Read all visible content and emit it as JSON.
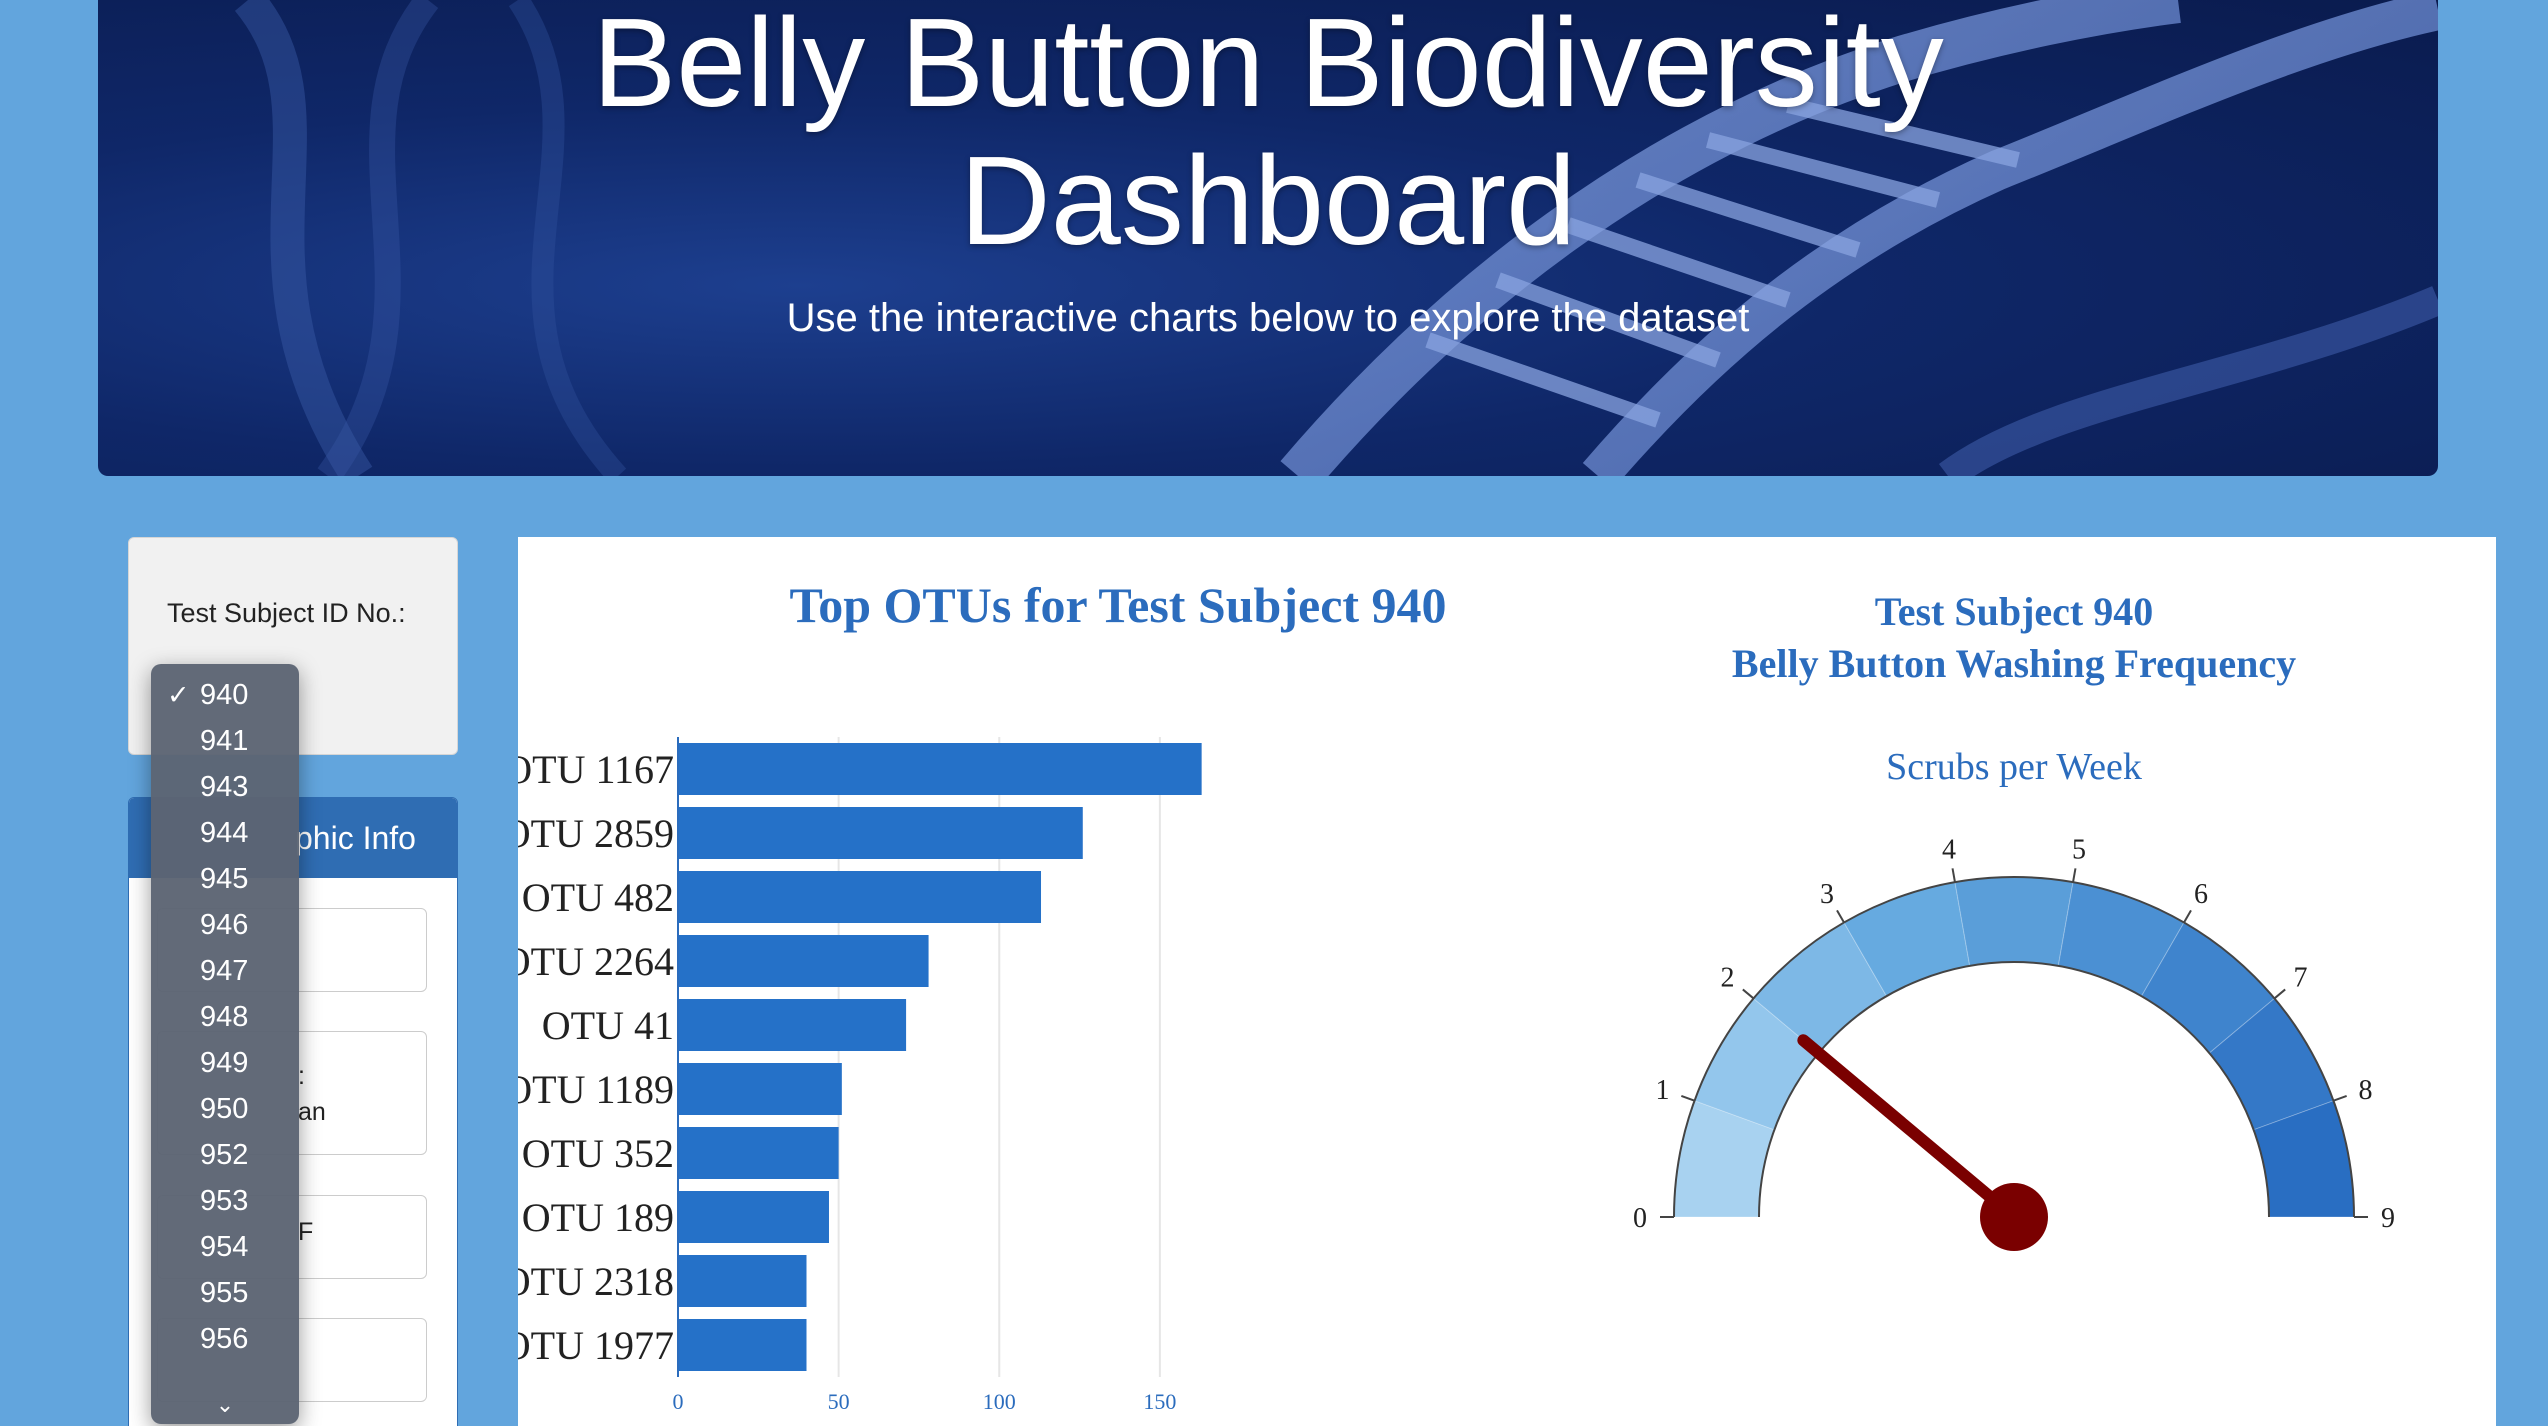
{
  "hero": {
    "title_line1": "Belly Button Biodiversity",
    "title_line2": "Dashboard",
    "subtitle": "Use the interactive charts below to explore the dataset"
  },
  "selector": {
    "label": "Test Subject ID No.:",
    "options": [
      "940",
      "941",
      "943",
      "944",
      "945",
      "946",
      "947",
      "948",
      "949",
      "950",
      "952",
      "953",
      "954",
      "955",
      "956"
    ],
    "selected": "940",
    "check": "✓",
    "more_indicator": "⌄"
  },
  "demographics": {
    "header_partial": "phic Info",
    "box2_partial_a": ":",
    "box2_partial_b": "an",
    "box3_partial": "F"
  },
  "colors": {
    "bar": "#2571c8",
    "title": "#2b6cbd",
    "gauge_needle": "#7a0000",
    "gauge_steps": [
      "#a8d2f0",
      "#93c6ec",
      "#7db8e6",
      "#66aae0",
      "#5a9ed9",
      "#4b90d3",
      "#3f84cd",
      "#3478c7",
      "#296ec2"
    ]
  },
  "chart_data": [
    {
      "type": "bar",
      "orientation": "horizontal",
      "title": "Top OTUs for Test Subject 940",
      "categories": [
        "OTU 1167",
        "OTU 2859",
        "OTU 482",
        "OTU 2264",
        "OTU 41",
        "OTU 1189",
        "OTU 352",
        "OTU 189",
        "OTU 2318",
        "OTU 1977"
      ],
      "values": [
        163,
        126,
        113,
        78,
        71,
        51,
        50,
        47,
        40,
        40
      ],
      "xlim": [
        0,
        160
      ],
      "xticks": [
        0,
        50,
        100,
        150
      ]
    },
    {
      "type": "gauge",
      "title_line1": "Test Subject 940",
      "title_line2": "Belly Button Washing Frequency",
      "subtitle": "Scrubs per Week",
      "range": [
        0,
        9
      ],
      "ticks": [
        0,
        1,
        2,
        3,
        4,
        5,
        6,
        7,
        8,
        9
      ],
      "value": 2
    }
  ]
}
